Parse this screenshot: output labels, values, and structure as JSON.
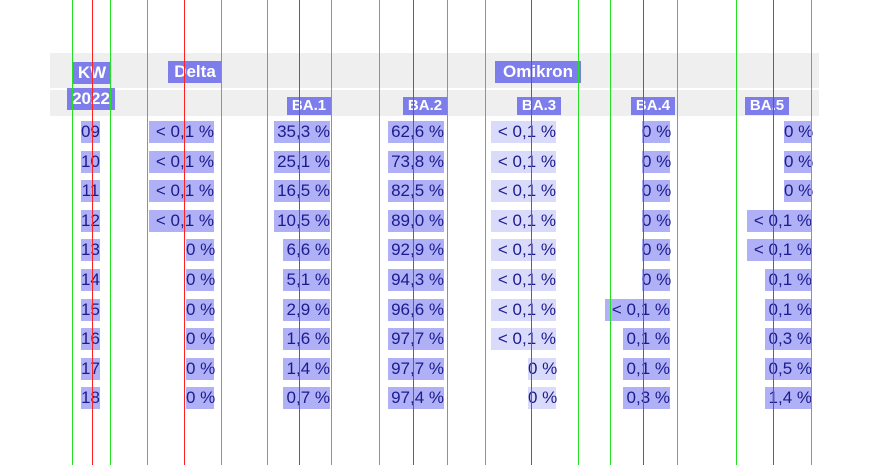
{
  "headers": {
    "kw": "KW",
    "year": "2022",
    "delta": "Delta",
    "omikron": "Omikron",
    "subvariants": [
      "BA.1",
      "BA.2",
      "BA.3",
      "BA.4",
      "BA.5"
    ]
  },
  "rows": [
    {
      "kw": "09",
      "delta": "< 0,1 %",
      "ba1": "35,3 %",
      "ba2": "62,6 %",
      "ba3": "< 0,1 %",
      "ba4": "0 %",
      "ba5": "0 %"
    },
    {
      "kw": "10",
      "delta": "< 0,1 %",
      "ba1": "25,1 %",
      "ba2": "73,8 %",
      "ba3": "< 0,1 %",
      "ba4": "0 %",
      "ba5": "0 %"
    },
    {
      "kw": "11",
      "delta": "< 0,1 %",
      "ba1": "16,5 %",
      "ba2": "82,5 %",
      "ba3": "< 0,1 %",
      "ba4": "0 %",
      "ba5": "0 %"
    },
    {
      "kw": "12",
      "delta": "< 0,1 %",
      "ba1": "10,5 %",
      "ba2": "89,0 %",
      "ba3": "< 0,1 %",
      "ba4": "0 %",
      "ba5": "< 0,1 %"
    },
    {
      "kw": "13",
      "delta": "0 %",
      "ba1": "6,6 %",
      "ba2": "92,9 %",
      "ba3": "< 0,1 %",
      "ba4": "0 %",
      "ba5": "< 0,1 %"
    },
    {
      "kw": "14",
      "delta": "0 %",
      "ba1": "5,1 %",
      "ba2": "94,3 %",
      "ba3": "< 0,1 %",
      "ba4": "0 %",
      "ba5": "0,1 %"
    },
    {
      "kw": "15",
      "delta": "0 %",
      "ba1": "2,9 %",
      "ba2": "96,6 %",
      "ba3": "< 0,1 %",
      "ba4": "< 0,1 %",
      "ba5": "0,1 %"
    },
    {
      "kw": "16",
      "delta": "0 %",
      "ba1": "1,6 %",
      "ba2": "97,7 %",
      "ba3": "< 0,1 %",
      "ba4": "0,1 %",
      "ba5": "0,3 %"
    },
    {
      "kw": "17",
      "delta": "0 %",
      "ba1": "1,4 %",
      "ba2": "97,7 %",
      "ba3": "0 %",
      "ba4": "0,1 %",
      "ba5": "0,5 %"
    },
    {
      "kw": "18",
      "delta": "0 %",
      "ba1": "0,7 %",
      "ba2": "97,4 %",
      "ba3": "0 %",
      "ba4": "0,3 %",
      "ba5": "1,4 %"
    }
  ],
  "colors": {
    "column_boundary": "#22e022",
    "column_center": "#ff2020",
    "highlight": "#7070ee",
    "text": "#1b1b8f",
    "header_background": "#efefef"
  }
}
